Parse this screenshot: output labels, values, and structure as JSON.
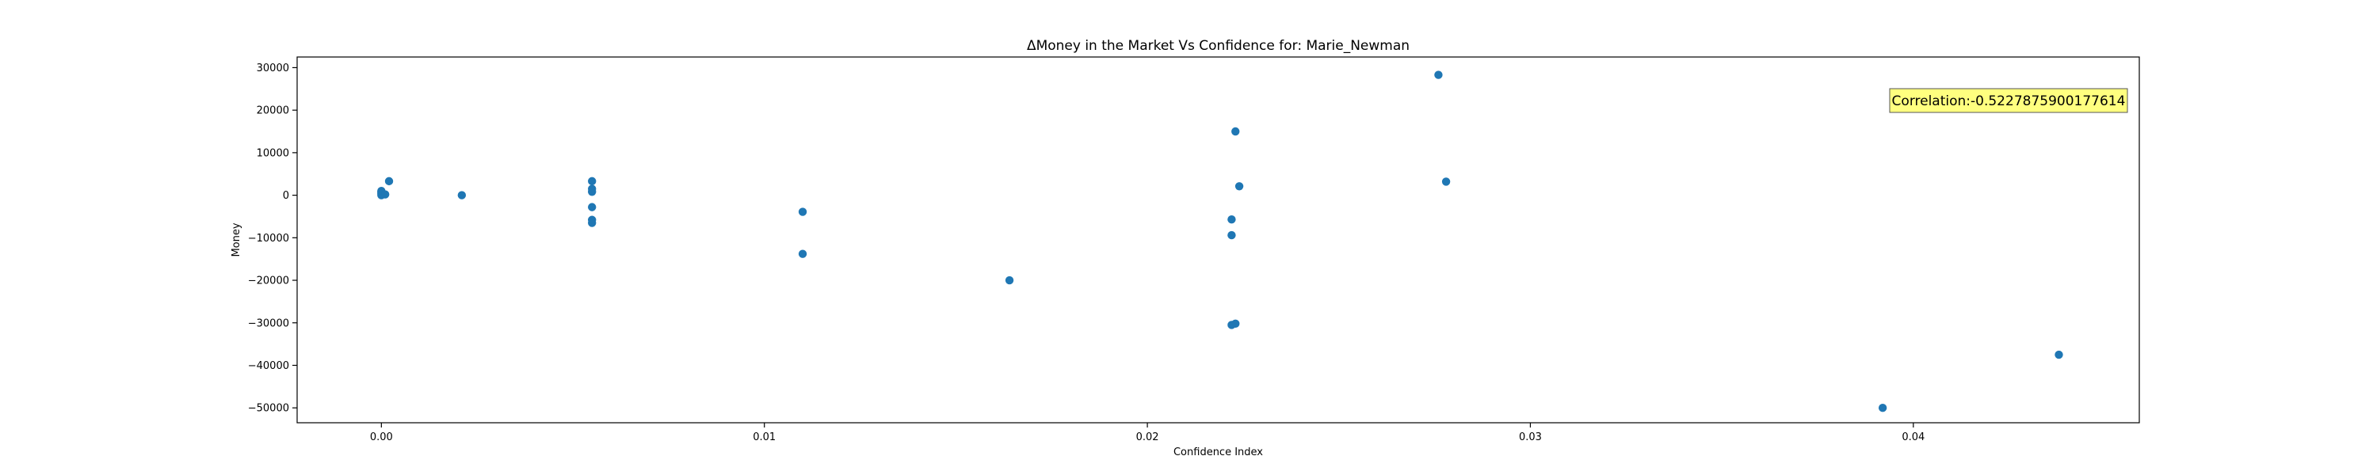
{
  "chart_data": {
    "type": "scatter",
    "title": "ΔMoney in the Market Vs Confidence for: Marie_Newman",
    "xlabel": "Confidence Index",
    "ylabel": "Money",
    "xlim": [
      -0.0022,
      0.0459
    ],
    "ylim": [
      -53500,
      32500
    ],
    "xticks": [
      0.0,
      0.01,
      0.02,
      0.03,
      0.04
    ],
    "xtick_labels": [
      "0.00",
      "0.01",
      "0.02",
      "0.03",
      "0.04"
    ],
    "yticks": [
      -50000,
      -40000,
      -30000,
      -20000,
      -10000,
      0,
      10000,
      20000,
      30000
    ],
    "ytick_labels": [
      "−50000",
      "−40000",
      "−30000",
      "−20000",
      "−10000",
      "0",
      "10000",
      "20000",
      "30000"
    ],
    "grid": false,
    "annotation": {
      "text": "Correlation:-0.5227875900177614",
      "box_color": "#ffff7f",
      "placement": "top-right"
    },
    "marker_color": "#1f77b4",
    "points": [
      {
        "x": 0.0,
        "y": 1000
      },
      {
        "x": 0.0,
        "y": 500
      },
      {
        "x": 0.0,
        "y": 0
      },
      {
        "x": 0.0,
        "y": 300
      },
      {
        "x": 0.0,
        "y": 800
      },
      {
        "x": 0.0001,
        "y": 200
      },
      {
        "x": 0.0002,
        "y": 3300
      },
      {
        "x": 0.0021,
        "y": 0
      },
      {
        "x": 0.0055,
        "y": 3300
      },
      {
        "x": 0.0055,
        "y": 1500
      },
      {
        "x": 0.0055,
        "y": 800
      },
      {
        "x": 0.0055,
        "y": -2800
      },
      {
        "x": 0.0055,
        "y": -5800
      },
      {
        "x": 0.0055,
        "y": -6500
      },
      {
        "x": 0.011,
        "y": -3900
      },
      {
        "x": 0.011,
        "y": -13800
      },
      {
        "x": 0.0164,
        "y": -20000
      },
      {
        "x": 0.0223,
        "y": 15000
      },
      {
        "x": 0.0224,
        "y": 2100
      },
      {
        "x": 0.0222,
        "y": -5700
      },
      {
        "x": 0.0222,
        "y": -9400
      },
      {
        "x": 0.0223,
        "y": -30200
      },
      {
        "x": 0.0222,
        "y": -30500
      },
      {
        "x": 0.0276,
        "y": 28300
      },
      {
        "x": 0.0278,
        "y": 3200
      },
      {
        "x": 0.0392,
        "y": -50000
      },
      {
        "x": 0.0438,
        "y": -37500
      }
    ]
  }
}
